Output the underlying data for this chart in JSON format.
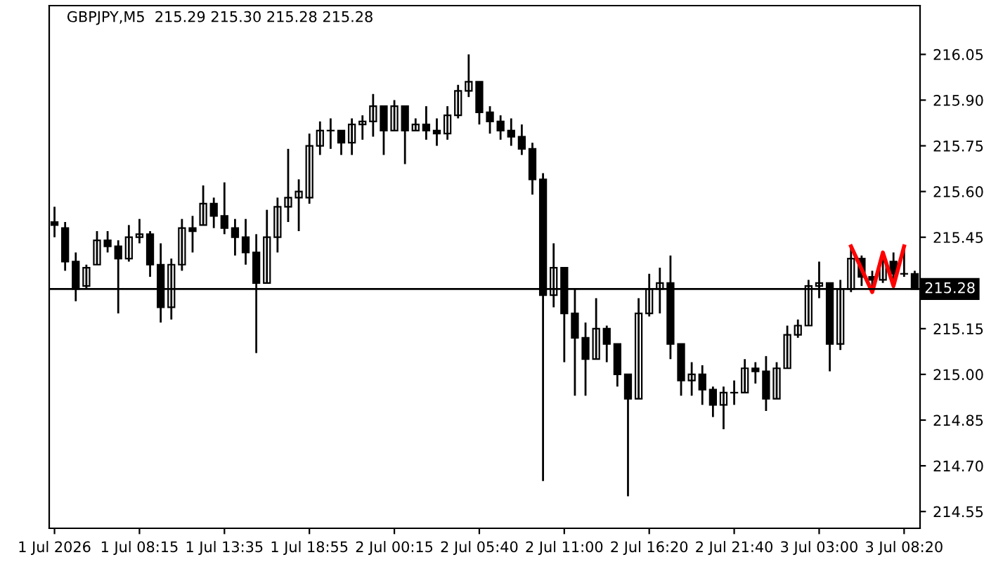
{
  "chart_data": {
    "type": "candlestick",
    "title": "GBPJPY,M5  215.29 215.30 215.28 215.28",
    "categories": [
      "1 Jul 2026",
      null,
      null,
      null,
      null,
      null,
      null,
      null,
      "1 Jul 08:15",
      null,
      null,
      null,
      null,
      null,
      null,
      null,
      "1 Jul 13:35",
      null,
      null,
      null,
      null,
      null,
      null,
      null,
      "1 Jul 18:55",
      null,
      null,
      null,
      null,
      null,
      null,
      null,
      "2 Jul 00:15",
      null,
      null,
      null,
      null,
      null,
      null,
      null,
      "2 Jul 05:40",
      null,
      null,
      null,
      null,
      null,
      null,
      null,
      "2 Jul 11:00",
      null,
      null,
      null,
      null,
      null,
      null,
      null,
      "2 Jul 16:20",
      null,
      null,
      null,
      null,
      null,
      null,
      null,
      "2 Jul 21:40",
      null,
      null,
      null,
      null,
      null,
      null,
      null,
      "3 Jul 03:00",
      null,
      null,
      null,
      null,
      null,
      null,
      null,
      "3 Jul 08:20",
      null
    ],
    "ohlc": [
      [
        215.5,
        215.55,
        215.45,
        215.49
      ],
      [
        215.48,
        215.5,
        215.34,
        215.37
      ],
      [
        215.37,
        215.4,
        215.24,
        215.28
      ],
      [
        215.29,
        215.36,
        215.28,
        215.35
      ],
      [
        215.36,
        215.47,
        215.36,
        215.44
      ],
      [
        215.44,
        215.47,
        215.4,
        215.42
      ],
      [
        215.42,
        215.44,
        215.2,
        215.38
      ],
      [
        215.38,
        215.49,
        215.37,
        215.45
      ],
      [
        215.45,
        215.51,
        215.43,
        215.46
      ],
      [
        215.46,
        215.47,
        215.32,
        215.36
      ],
      [
        215.36,
        215.43,
        215.17,
        215.22
      ],
      [
        215.22,
        215.38,
        215.18,
        215.36
      ],
      [
        215.36,
        215.51,
        215.34,
        215.48
      ],
      [
        215.48,
        215.52,
        215.4,
        215.47
      ],
      [
        215.49,
        215.62,
        215.49,
        215.56
      ],
      [
        215.56,
        215.58,
        215.48,
        215.52
      ],
      [
        215.52,
        215.63,
        215.46,
        215.48
      ],
      [
        215.48,
        215.51,
        215.39,
        215.45
      ],
      [
        215.45,
        215.51,
        215.36,
        215.4
      ],
      [
        215.4,
        215.46,
        215.07,
        215.3
      ],
      [
        215.3,
        215.54,
        215.3,
        215.45
      ],
      [
        215.45,
        215.58,
        215.4,
        215.55
      ],
      [
        215.55,
        215.74,
        215.5,
        215.58
      ],
      [
        215.58,
        215.64,
        215.47,
        215.6
      ],
      [
        215.58,
        215.79,
        215.56,
        215.75
      ],
      [
        215.75,
        215.83,
        215.72,
        215.8
      ],
      [
        215.8,
        215.84,
        215.74,
        215.8
      ],
      [
        215.8,
        215.8,
        215.72,
        215.76
      ],
      [
        215.76,
        215.84,
        215.72,
        215.82
      ],
      [
        215.82,
        215.85,
        215.77,
        215.83
      ],
      [
        215.83,
        215.92,
        215.78,
        215.88
      ],
      [
        215.88,
        215.88,
        215.72,
        215.8
      ],
      [
        215.8,
        215.9,
        215.8,
        215.88
      ],
      [
        215.88,
        215.88,
        215.69,
        215.8
      ],
      [
        215.8,
        215.84,
        215.8,
        215.82
      ],
      [
        215.82,
        215.88,
        215.77,
        215.8
      ],
      [
        215.8,
        215.84,
        215.75,
        215.79
      ],
      [
        215.79,
        215.88,
        215.77,
        215.85
      ],
      [
        215.85,
        215.95,
        215.84,
        215.93
      ],
      [
        215.93,
        216.05,
        215.91,
        215.96
      ],
      [
        215.96,
        215.96,
        215.82,
        215.86
      ],
      [
        215.86,
        215.88,
        215.79,
        215.83
      ],
      [
        215.83,
        215.85,
        215.77,
        215.8
      ],
      [
        215.8,
        215.84,
        215.75,
        215.78
      ],
      [
        215.78,
        215.82,
        215.72,
        215.74
      ],
      [
        215.74,
        215.76,
        215.59,
        215.64
      ],
      [
        215.64,
        215.66,
        214.65,
        215.26
      ],
      [
        215.26,
        215.43,
        215.22,
        215.35
      ],
      [
        215.35,
        215.35,
        215.04,
        215.2
      ],
      [
        215.2,
        215.28,
        214.93,
        215.12
      ],
      [
        215.12,
        215.17,
        214.93,
        215.05
      ],
      [
        215.05,
        215.25,
        215.05,
        215.15
      ],
      [
        215.15,
        215.16,
        215.04,
        215.1
      ],
      [
        215.1,
        215.1,
        214.96,
        215.0
      ],
      [
        215.0,
        215.0,
        214.6,
        214.92
      ],
      [
        214.92,
        215.25,
        214.92,
        215.2
      ],
      [
        215.2,
        215.33,
        215.19,
        215.28
      ],
      [
        215.28,
        215.35,
        215.2,
        215.3
      ],
      [
        215.3,
        215.39,
        215.05,
        215.1
      ],
      [
        215.1,
        215.1,
        214.93,
        214.98
      ],
      [
        214.98,
        215.04,
        214.93,
        215.0
      ],
      [
        215.0,
        215.03,
        214.9,
        214.95
      ],
      [
        214.95,
        214.96,
        214.86,
        214.9
      ],
      [
        214.9,
        214.96,
        214.82,
        214.94
      ],
      [
        214.94,
        214.98,
        214.9,
        214.94
      ],
      [
        214.94,
        215.05,
        214.94,
        215.02
      ],
      [
        215.02,
        215.04,
        214.97,
        215.01
      ],
      [
        215.01,
        215.06,
        214.88,
        214.92
      ],
      [
        214.92,
        215.04,
        214.92,
        215.02
      ],
      [
        215.02,
        215.16,
        215.02,
        215.13
      ],
      [
        215.13,
        215.18,
        215.12,
        215.16
      ],
      [
        215.16,
        215.31,
        215.16,
        215.29
      ],
      [
        215.29,
        215.37,
        215.25,
        215.3
      ],
      [
        215.3,
        215.3,
        215.01,
        215.1
      ],
      [
        215.1,
        215.31,
        215.08,
        215.28
      ],
      [
        215.28,
        215.42,
        215.27,
        215.38
      ],
      [
        215.38,
        215.39,
        215.29,
        215.32
      ],
      [
        215.32,
        215.34,
        215.28,
        215.31
      ],
      [
        215.31,
        215.38,
        215.3,
        215.37
      ],
      [
        215.37,
        215.4,
        215.28,
        215.33
      ],
      [
        215.33,
        215.41,
        215.32,
        215.33
      ],
      [
        215.33,
        215.34,
        215.28,
        215.28
      ]
    ],
    "color": "#000000",
    "series": [
      {
        "type": "line",
        "color": "#ff0000",
        "values": [
          null,
          null,
          null,
          null,
          null,
          null,
          null,
          null,
          null,
          null,
          null,
          null,
          null,
          null,
          null,
          null,
          null,
          null,
          null,
          null,
          null,
          null,
          null,
          null,
          null,
          null,
          null,
          null,
          null,
          null,
          null,
          null,
          null,
          null,
          null,
          null,
          null,
          null,
          null,
          null,
          null,
          null,
          null,
          null,
          null,
          null,
          null,
          null,
          null,
          null,
          null,
          null,
          null,
          null,
          null,
          null,
          null,
          null,
          null,
          null,
          null,
          null,
          null,
          null,
          null,
          null,
          null,
          null,
          null,
          null,
          null,
          null,
          null,
          null,
          null,
          215.42,
          null,
          215.27,
          215.4,
          215.29,
          215.42,
          null
        ]
      }
    ],
    "ref_lines": [
      {
        "axis": "y",
        "value": 215.28,
        "label": "215.28",
        "color": "#000000"
      }
    ],
    "ylim": [
      214.495,
      216.21
    ],
    "yticks": [
      {
        "value": 214.55,
        "label": "214.55"
      },
      {
        "value": 214.7,
        "label": "214.70"
      },
      {
        "value": 214.85,
        "label": "214.85"
      },
      {
        "value": 215.0,
        "label": "215.00"
      },
      {
        "value": 215.15,
        "label": "215.15"
      },
      {
        "value": 215.3,
        "label": null
      },
      {
        "value": 215.45,
        "label": "215.45"
      },
      {
        "value": 215.6,
        "label": "215.60"
      },
      {
        "value": 215.75,
        "label": "215.75"
      },
      {
        "value": 215.9,
        "label": "215.90"
      },
      {
        "value": 216.05,
        "label": "216.05"
      }
    ],
    "grid": false,
    "legend": false
  }
}
